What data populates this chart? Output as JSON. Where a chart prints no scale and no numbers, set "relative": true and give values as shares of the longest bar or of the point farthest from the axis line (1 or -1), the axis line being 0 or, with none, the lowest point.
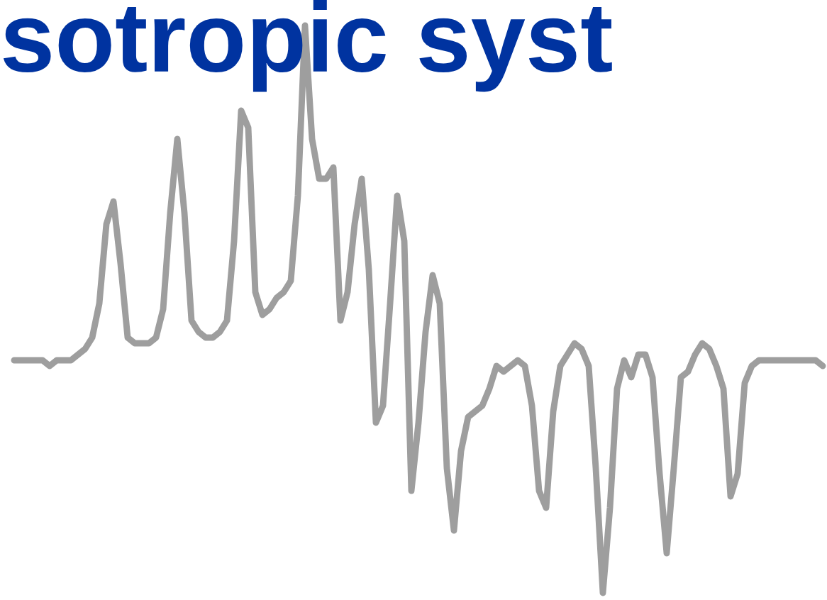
{
  "chart_data": {
    "type": "line",
    "relative": true,
    "title": "sotropic syst",
    "categories": [
      null,
      null,
      null,
      null,
      null,
      null,
      null,
      null,
      null,
      null,
      null,
      null,
      null,
      null,
      null,
      null,
      null,
      null,
      null,
      null,
      null,
      null,
      null,
      null,
      null,
      null,
      null,
      null,
      null,
      null,
      null,
      null,
      null,
      null,
      null,
      null,
      null,
      null,
      null,
      null,
      null,
      null,
      null,
      null,
      null,
      null,
      null,
      null,
      null,
      null,
      null,
      null,
      null,
      null,
      null,
      null,
      null,
      null,
      null,
      null,
      null,
      null,
      null,
      null,
      null,
      null,
      null,
      null,
      null,
      null,
      null,
      null,
      null,
      null,
      null,
      null,
      null,
      null,
      null,
      null,
      null,
      null,
      null,
      null,
      null,
      null,
      null,
      null,
      null,
      null,
      null,
      null,
      null,
      null,
      null,
      null,
      null,
      null,
      null,
      null,
      null,
      null,
      null,
      null,
      null,
      null,
      null,
      null,
      null,
      null,
      null,
      null,
      null,
      null,
      null
    ],
    "series": [
      {
        "color": "#9e9e9e",
        "values": [
          0.41,
          0.41,
          0.41,
          0.41,
          0.41,
          0.4,
          0.41,
          0.41,
          0.41,
          0.42,
          0.43,
          0.45,
          0.51,
          0.65,
          0.69,
          0.58,
          0.45,
          0.44,
          0.44,
          0.44,
          0.45,
          0.5,
          0.67,
          0.8,
          0.67,
          0.48,
          0.46,
          0.45,
          0.45,
          0.46,
          0.48,
          0.62,
          0.85,
          0.82,
          0.53,
          0.49,
          0.5,
          0.52,
          0.53,
          0.55,
          0.7,
          1.0,
          0.8,
          0.73,
          0.73,
          0.75,
          0.48,
          0.53,
          0.65,
          0.73,
          0.57,
          0.3,
          0.33,
          0.51,
          0.7,
          0.62,
          0.18,
          0.3,
          0.46,
          0.56,
          0.51,
          0.22,
          0.11,
          0.25,
          0.31,
          0.32,
          0.33,
          0.36,
          0.4,
          0.39,
          0.4,
          0.41,
          0.4,
          0.33,
          0.18,
          0.15,
          0.32,
          0.4,
          0.42,
          0.44,
          0.43,
          0.4,
          0.22,
          0.0,
          0.15,
          0.36,
          0.41,
          0.38,
          0.42,
          0.42,
          0.38,
          0.21,
          0.07,
          0.22,
          0.38,
          0.39,
          0.42,
          0.44,
          0.43,
          0.4,
          0.36,
          0.17,
          0.21,
          0.37,
          0.4,
          0.41,
          0.41,
          0.41,
          0.41,
          0.41,
          0.41,
          0.41,
          0.41,
          0.41,
          0.4
        ]
      }
    ],
    "marker": "none",
    "line_style": "solid",
    "grid": false,
    "legend": false
  }
}
